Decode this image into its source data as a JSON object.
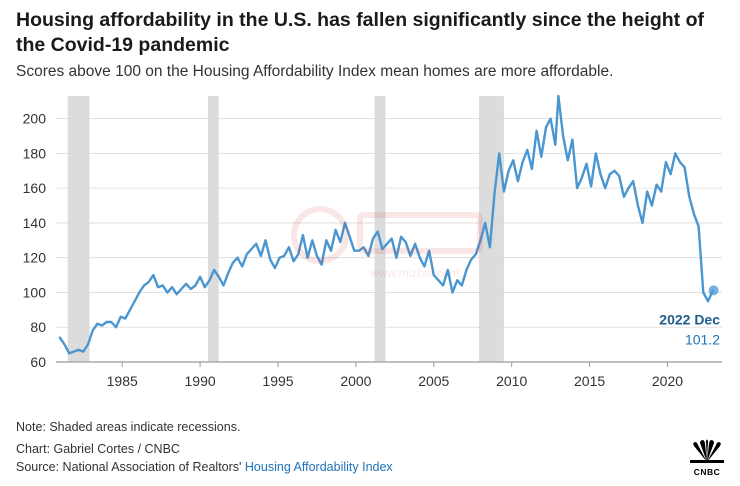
{
  "header": {
    "title": "Housing affordability in the U.S. has fallen significantly since the height of the Covid-19 pandemic",
    "subtitle": "Scores above 100 on the Housing Affordability Index mean homes are more affordable."
  },
  "footer": {
    "note": "Note: Shaded areas indicate recessions.",
    "credit": "Chart: Gabriel Cortes / CNBC",
    "source_prefix": "Source: National Association of Realtors' ",
    "source_link": "Housing Affordability Index"
  },
  "logo": {
    "icon": "peacock-icon",
    "text": "CNBC"
  },
  "watermark": {
    "text": "www.mizhai.com"
  },
  "chart_data": {
    "type": "line",
    "title": "",
    "xlabel": "",
    "ylabel": "",
    "xlim": [
      1980.75,
      2023.5
    ],
    "ylim": [
      60,
      213
    ],
    "x_ticks": [
      1985,
      1990,
      1995,
      2000,
      2005,
      2010,
      2015,
      2020
    ],
    "y_ticks": [
      60,
      80,
      100,
      120,
      140,
      160,
      180,
      200
    ],
    "grid": "horizontal",
    "line_color": "#4a96d0",
    "recession_color": "#dcdcdc",
    "recessions": [
      [
        1981.5,
        1982.9
      ],
      [
        1990.5,
        1991.2
      ],
      [
        2001.2,
        2001.9
      ],
      [
        2007.9,
        2009.5
      ]
    ],
    "series": [
      {
        "values_x": [
          1981.0,
          1981.3,
          1981.6,
          1981.9,
          1982.2,
          1982.5,
          1982.8,
          1983.1,
          1983.4,
          1983.7,
          1984.0,
          1984.3,
          1984.6,
          1984.9,
          1985.2,
          1985.5,
          1985.8,
          1986.1,
          1986.4,
          1986.7,
          1987.0,
          1987.3,
          1987.6,
          1987.9,
          1988.2,
          1988.5,
          1988.8,
          1989.1,
          1989.4,
          1989.7,
          1990.0,
          1990.3,
          1990.6,
          1990.9,
          1991.2,
          1991.5,
          1991.8,
          1992.1,
          1992.4,
          1992.7,
          1993.0,
          1993.3,
          1993.6,
          1993.9,
          1994.2,
          1994.5,
          1994.8,
          1995.1,
          1995.4,
          1995.7,
          1996.0,
          1996.3,
          1996.6,
          1996.9,
          1997.2,
          1997.5,
          1997.8,
          1998.1,
          1998.4,
          1998.7,
          1999.0,
          1999.3,
          1999.6,
          1999.9,
          2000.2,
          2000.5,
          2000.8,
          2001.1,
          2001.4,
          2001.7,
          2002.0,
          2002.3,
          2002.6,
          2002.9,
          2003.2,
          2003.5,
          2003.8,
          2004.1,
          2004.4,
          2004.7,
          2005.0,
          2005.3,
          2005.6,
          2005.9,
          2006.2,
          2006.5,
          2006.8,
          2007.1,
          2007.4,
          2007.7,
          2008.0,
          2008.3,
          2008.6,
          2008.9,
          2009.2,
          2009.5,
          2009.8,
          2010.1,
          2010.4,
          2010.7,
          2011.0,
          2011.3,
          2011.6,
          2011.9,
          2012.2,
          2012.5,
          2012.8,
          2013.0,
          2013.3,
          2013.6,
          2013.9,
          2014.2,
          2014.5,
          2014.8,
          2015.1,
          2015.4,
          2015.7,
          2016.0,
          2016.3,
          2016.6,
          2016.9,
          2017.2,
          2017.5,
          2017.8,
          2018.1,
          2018.4,
          2018.7,
          2019.0,
          2019.3,
          2019.6,
          2019.9,
          2020.2,
          2020.5,
          2020.8,
          2021.1,
          2021.4,
          2021.7,
          2022.0,
          2022.3,
          2022.6,
          2022.9
        ],
        "values": [
          74,
          70,
          65,
          66,
          67,
          66,
          70,
          78,
          82,
          81,
          83,
          83,
          80,
          86,
          85,
          90,
          95,
          100,
          104,
          106,
          110,
          103,
          104,
          100,
          103,
          99,
          102,
          105,
          102,
          104,
          109,
          103,
          107,
          113,
          109,
          104,
          111,
          117,
          120,
          115,
          122,
          125,
          128,
          121,
          130,
          119,
          114,
          120,
          121,
          126,
          118,
          122,
          133,
          120,
          130,
          121,
          116,
          130,
          124,
          136,
          129,
          140,
          132,
          124,
          124,
          126,
          121,
          131,
          135,
          125,
          128,
          131,
          120,
          132,
          129,
          121,
          128,
          120,
          115,
          124,
          110,
          107,
          104,
          113,
          100,
          107,
          104,
          113,
          119,
          122,
          130,
          140,
          126,
          157,
          180,
          158,
          170,
          176,
          164,
          175,
          182,
          171,
          193,
          178,
          195,
          200,
          185,
          213,
          190,
          176,
          188,
          160,
          166,
          174,
          161,
          180,
          168,
          160,
          168,
          170,
          167,
          155,
          160,
          164,
          150,
          140,
          158,
          150,
          162,
          158,
          175,
          168,
          180,
          175,
          172,
          155,
          145,
          138,
          100,
          95,
          101
        ]
      }
    ],
    "annotation": {
      "label": "2022 Dec",
      "value": "101.2",
      "x": 2022.96,
      "y": 101.2
    }
  }
}
